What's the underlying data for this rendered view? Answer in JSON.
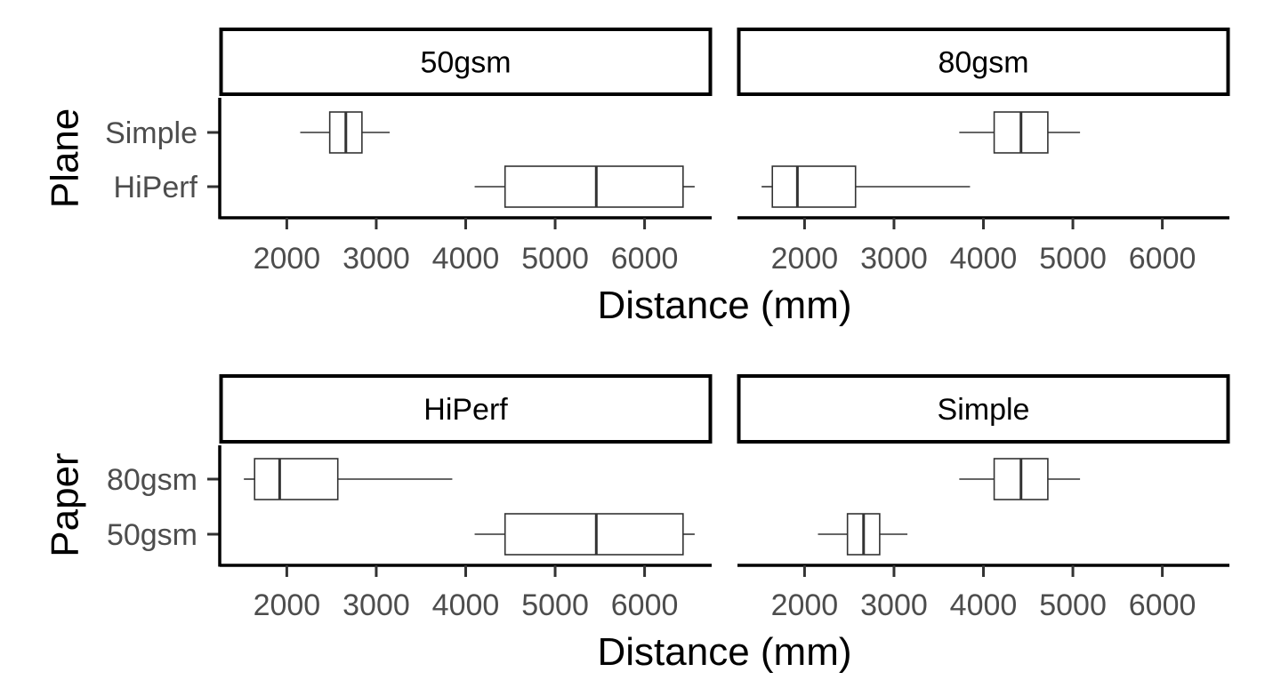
{
  "chart_data": [
    {
      "type": "boxplot",
      "orientation": "horizontal",
      "facet_var": "Paper",
      "y_var": "Plane",
      "ylabel": "Plane",
      "xlabel": "Distance (mm)",
      "xlim": [
        1250,
        6750
      ],
      "xticks": [
        2000,
        3000,
        4000,
        5000,
        6000
      ],
      "categories": [
        "Simple",
        "HiPerf"
      ],
      "facets": [
        {
          "label": "50gsm",
          "boxes": [
            {
              "category": "Simple",
              "min": 2150,
              "q1": 2480,
              "median": 2660,
              "q3": 2840,
              "max": 3150
            },
            {
              "category": "HiPerf",
              "min": 4100,
              "q1": 4440,
              "median": 5460,
              "q3": 6430,
              "max": 6560
            }
          ]
        },
        {
          "label": "80gsm",
          "boxes": [
            {
              "category": "Simple",
              "min": 3730,
              "q1": 4120,
              "median": 4420,
              "q3": 4720,
              "max": 5080
            },
            {
              "category": "HiPerf",
              "min": 1520,
              "q1": 1640,
              "median": 1920,
              "q3": 2570,
              "max": 3850
            }
          ]
        }
      ]
    },
    {
      "type": "boxplot",
      "orientation": "horizontal",
      "facet_var": "Plane",
      "y_var": "Paper",
      "ylabel": "Paper",
      "xlabel": "Distance (mm)",
      "xlim": [
        1250,
        6750
      ],
      "xticks": [
        2000,
        3000,
        4000,
        5000,
        6000
      ],
      "categories": [
        "80gsm",
        "50gsm"
      ],
      "facets": [
        {
          "label": "HiPerf",
          "boxes": [
            {
              "category": "80gsm",
              "min": 1520,
              "q1": 1640,
              "median": 1920,
              "q3": 2570,
              "max": 3850
            },
            {
              "category": "50gsm",
              "min": 4100,
              "q1": 4440,
              "median": 5460,
              "q3": 6430,
              "max": 6560
            }
          ]
        },
        {
          "label": "Simple",
          "boxes": [
            {
              "category": "80gsm",
              "min": 3730,
              "q1": 4120,
              "median": 4420,
              "q3": 4720,
              "max": 5080
            },
            {
              "category": "50gsm",
              "min": 2150,
              "q1": 2480,
              "median": 2660,
              "q3": 2840,
              "max": 3150
            }
          ]
        }
      ]
    }
  ]
}
